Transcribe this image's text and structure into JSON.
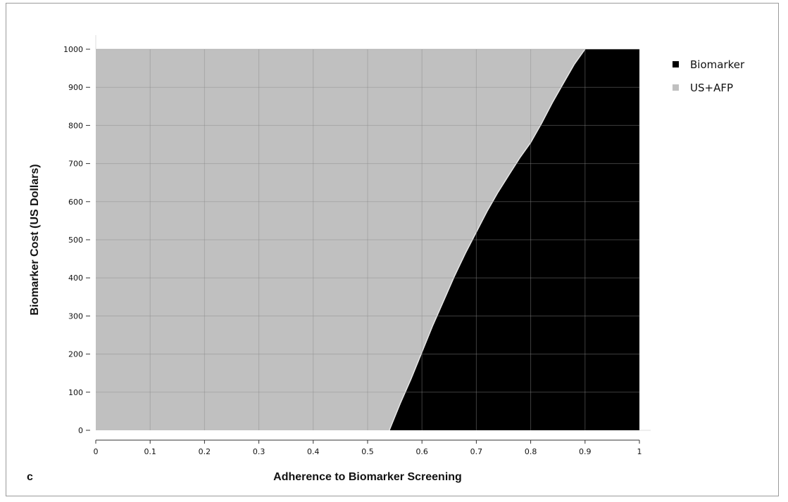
{
  "panel_label": "c",
  "chart_data": {
    "type": "area",
    "xlabel": "Adherence to Biomarker Screening",
    "ylabel": "Biomarker Cost (US Dollars)",
    "xlim": [
      0,
      1
    ],
    "ylim": [
      0,
      1000
    ],
    "x_ticks": [
      0,
      0.1,
      0.2,
      0.3,
      0.4,
      0.5,
      0.6,
      0.7,
      0.8,
      0.9,
      1
    ],
    "x_tick_labels": [
      "0",
      "0.1",
      "0.2",
      "0.3",
      "0.4",
      "0.5",
      "0.6",
      "0.7",
      "0.8",
      "0.9",
      "1"
    ],
    "y_ticks": [
      0,
      100,
      200,
      300,
      400,
      500,
      600,
      700,
      800,
      900,
      1000
    ],
    "y_tick_labels": [
      "0",
      "100",
      "200",
      "300",
      "400",
      "500",
      "600",
      "700",
      "800",
      "900",
      "1000"
    ],
    "grid": true,
    "legend_position": "top-right",
    "series": [
      {
        "name": "Biomarker",
        "color": "#000000",
        "region": "right of boundary"
      },
      {
        "name": "US+AFP",
        "color": "#c0c0c0",
        "region": "left of boundary"
      }
    ],
    "boundary": {
      "x": [
        0.54,
        0.56,
        0.58,
        0.6,
        0.62,
        0.64,
        0.66,
        0.68,
        0.7,
        0.72,
        0.74,
        0.76,
        0.78,
        0.8,
        0.82,
        0.84,
        0.86,
        0.88,
        0.9
      ],
      "y": [
        0,
        70,
        135,
        205,
        275,
        340,
        405,
        465,
        520,
        575,
        625,
        670,
        715,
        755,
        805,
        860,
        910,
        960,
        1000
      ]
    }
  }
}
